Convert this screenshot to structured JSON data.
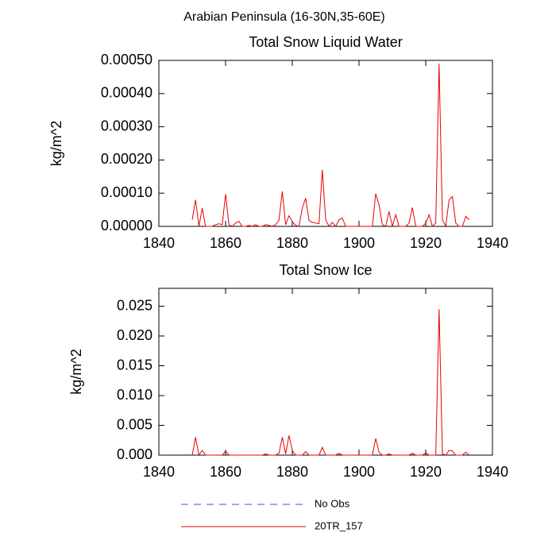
{
  "title": "Arabian Peninsula (16-30N,35-60E)",
  "legend": [
    {
      "name": "No Obs",
      "color": "#4b4bd2",
      "style": "dashed"
    },
    {
      "name": "20TR_157",
      "color": "#e60000",
      "style": "solid"
    }
  ],
  "chart_data": [
    {
      "type": "line",
      "title": "Total Snow Liquid Water",
      "y_label": "kg/m^2",
      "x": [
        1850,
        1851,
        1852,
        1853,
        1854,
        1855,
        1856,
        1857,
        1858,
        1859,
        1860,
        1861,
        1862,
        1863,
        1864,
        1865,
        1866,
        1867,
        1868,
        1869,
        1870,
        1871,
        1872,
        1873,
        1874,
        1875,
        1876,
        1877,
        1878,
        1879,
        1880,
        1881,
        1882,
        1883,
        1884,
        1885,
        1886,
        1887,
        1888,
        1889,
        1890,
        1891,
        1892,
        1893,
        1894,
        1895,
        1896,
        1897,
        1898,
        1899,
        1900,
        1901,
        1902,
        1903,
        1904,
        1905,
        1906,
        1907,
        1908,
        1909,
        1910,
        1911,
        1912,
        1913,
        1914,
        1915,
        1916,
        1917,
        1918,
        1919,
        1920,
        1921,
        1922,
        1923,
        1924,
        1925,
        1926,
        1927,
        1928,
        1929,
        1930,
        1931,
        1932,
        1933
      ],
      "series": [
        {
          "color": "#e60000",
          "values": [
            2e-05,
            8e-05,
            0,
            5.5e-05,
            0,
            0,
            0,
            5e-06,
            8e-06,
            5e-06,
            9.7e-05,
            5e-06,
            0,
            1e-05,
            1.5e-05,
            0,
            0,
            3e-06,
            0,
            5e-06,
            0,
            0,
            5e-06,
            3e-06,
            0,
            5e-06,
            1.8e-05,
            0.000105,
            5e-06,
            3.2e-05,
            1.5e-05,
            3e-06,
            0,
            5.5e-05,
            8.5e-05,
            1.8e-05,
            1.2e-05,
            1e-05,
            8e-06,
            0.00017,
            2e-05,
            0,
            1.2e-05,
            0,
            2e-05,
            2.5e-05,
            0,
            0,
            0,
            0,
            0,
            0,
            0,
            0,
            0,
            9.8e-05,
            6.5e-05,
            5e-06,
            0,
            4.5e-05,
            0,
            3.5e-05,
            0,
            0,
            0,
            1e-05,
            5.7e-05,
            0,
            0,
            0,
            1e-05,
            3.5e-05,
            0,
            1e-05,
            0.00049,
            2e-05,
            0,
            8e-05,
            9e-05,
            1e-05,
            0,
            0,
            3e-05,
            2e-05
          ]
        }
      ],
      "xlim": [
        1840,
        1940
      ],
      "xticks": [
        1840,
        1860,
        1880,
        1900,
        1920,
        1940
      ],
      "ylim": [
        0,
        0.0005
      ],
      "yticks": [
        {
          "value": 0,
          "label": "0.00000"
        },
        {
          "value": 0.0001,
          "label": "0.00010"
        },
        {
          "value": 0.0002,
          "label": "0.00020"
        },
        {
          "value": 0.0003,
          "label": "0.00030"
        },
        {
          "value": 0.0004,
          "label": "0.00040"
        },
        {
          "value": 0.0005,
          "label": "0.00050"
        }
      ],
      "grid": false
    },
    {
      "type": "line",
      "title": "Total Snow Ice",
      "y_label": "kg/m^2",
      "x": [
        1850,
        1851,
        1852,
        1853,
        1854,
        1855,
        1856,
        1857,
        1858,
        1859,
        1860,
        1861,
        1862,
        1863,
        1864,
        1865,
        1866,
        1867,
        1868,
        1869,
        1870,
        1871,
        1872,
        1873,
        1874,
        1875,
        1876,
        1877,
        1878,
        1879,
        1880,
        1881,
        1882,
        1883,
        1884,
        1885,
        1886,
        1887,
        1888,
        1889,
        1890,
        1891,
        1892,
        1893,
        1894,
        1895,
        1896,
        1897,
        1898,
        1899,
        1900,
        1901,
        1902,
        1903,
        1904,
        1905,
        1906,
        1907,
        1908,
        1909,
        1910,
        1911,
        1912,
        1913,
        1914,
        1915,
        1916,
        1917,
        1918,
        1919,
        1920,
        1921,
        1922,
        1923,
        1924,
        1925,
        1926,
        1927,
        1928,
        1929,
        1930,
        1931,
        1932,
        1933
      ],
      "series": [
        {
          "color": "#e60000",
          "values": [
            0,
            0.003,
            0,
            0.0008,
            0,
            0,
            0,
            0,
            0,
            0,
            0.0007,
            0,
            0,
            0,
            0,
            0,
            0,
            0,
            0,
            0,
            0,
            0,
            0.0002,
            0,
            0,
            0,
            0.0003,
            0.003,
            0.0002,
            0.0033,
            0.0008,
            0,
            0,
            0,
            0.0006,
            0,
            0,
            0,
            0,
            0.0013,
            0,
            0,
            0,
            0,
            0.0003,
            0,
            0,
            0,
            0,
            0,
            0,
            0,
            0,
            0,
            0,
            0.0028,
            0.0005,
            0,
            0,
            0.0002,
            0,
            0,
            0,
            0,
            0,
            0,
            0.0003,
            0,
            0,
            0,
            0.0004,
            0,
            0,
            0,
            0.0245,
            0.0002,
            0,
            0.0008,
            0.0007,
            0,
            0,
            0,
            0.0005,
            0
          ]
        }
      ],
      "xlim": [
        1840,
        1940
      ],
      "xticks": [
        1840,
        1860,
        1880,
        1900,
        1920,
        1940
      ],
      "ylim": [
        0,
        0.028
      ],
      "yticks": [
        {
          "value": 0,
          "label": "0.000"
        },
        0.005,
        {
          "value": 0.01,
          "label": "0.010"
        },
        0.015,
        {
          "value": 0.02,
          "label": "0.020"
        },
        0.025
      ],
      "grid": false
    }
  ]
}
